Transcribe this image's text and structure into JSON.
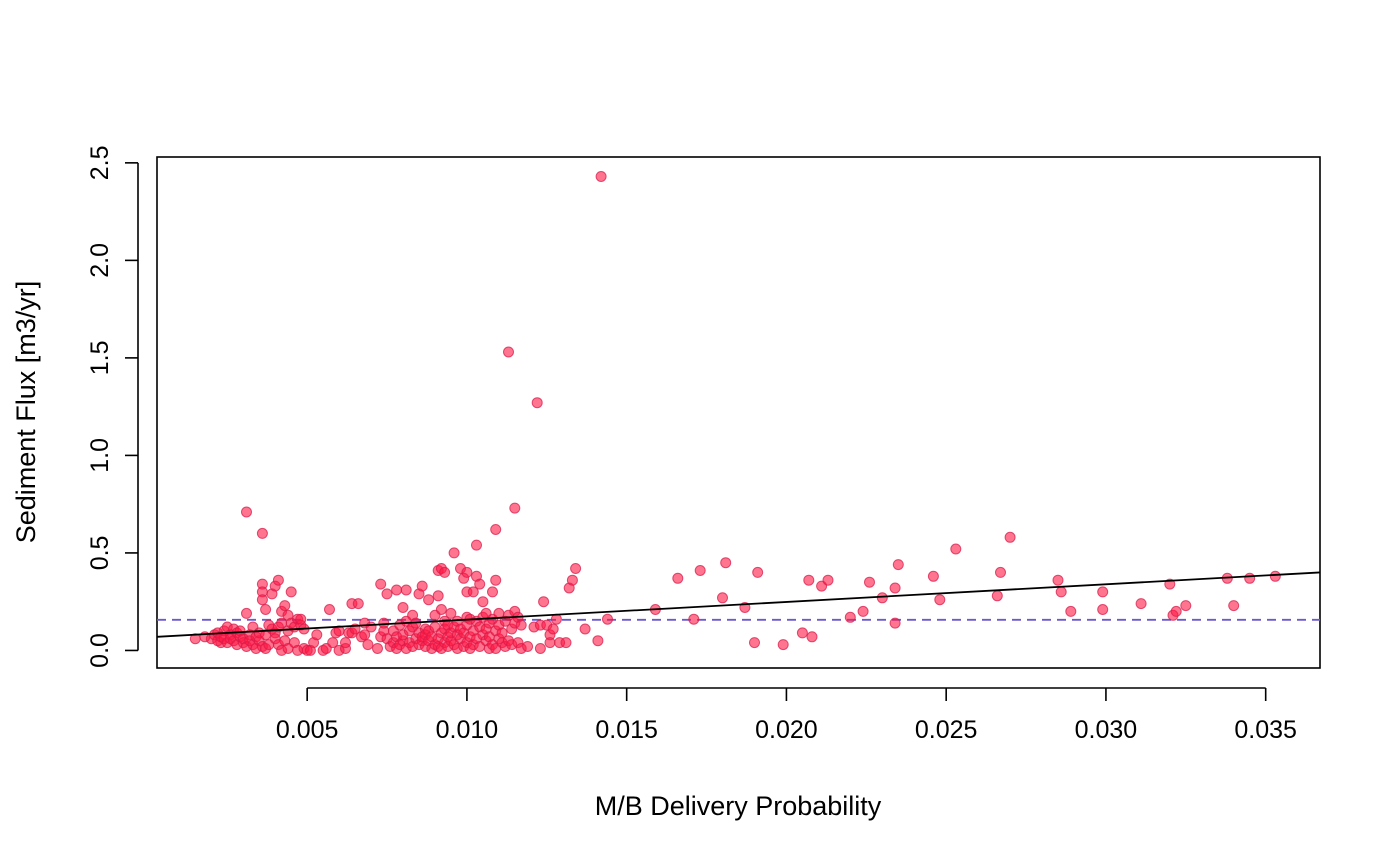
{
  "chart_data": {
    "type": "scatter",
    "title": "",
    "xlabel": "M/B Delivery Probability",
    "ylabel": "Sediment Flux [m3/yr]",
    "xlim": [
      0.0003,
      0.0367
    ],
    "ylim": [
      -0.09,
      2.53
    ],
    "x_ticks": [
      0.005,
      0.01,
      0.015,
      0.02,
      0.025,
      0.03,
      0.035
    ],
    "x_tick_labels": [
      "0.005",
      "0.010",
      "0.015",
      "0.020",
      "0.025",
      "0.030",
      "0.035"
    ],
    "y_ticks": [
      0.0,
      0.5,
      1.0,
      1.5,
      2.0,
      2.5
    ],
    "y_tick_labels": [
      "0.0",
      "0.5",
      "1.0",
      "1.5",
      "2.0",
      "2.5"
    ],
    "grid": false,
    "legend": "none",
    "colors": {
      "points": "#FF1744",
      "points_edge": "#D81B4A",
      "fit_line": "#000000",
      "mean_line": "#6A5ACD"
    },
    "fit_line": {
      "x": [
        0.0003,
        0.0367
      ],
      "y": [
        0.07,
        0.4
      ]
    },
    "mean_line": {
      "y": 0.157
    },
    "points": [
      [
        0.0015,
        0.06
      ],
      [
        0.0018,
        0.07
      ],
      [
        0.002,
        0.06
      ],
      [
        0.0021,
        0.08
      ],
      [
        0.0022,
        0.05
      ],
      [
        0.0022,
        0.09
      ],
      [
        0.0023,
        0.04
      ],
      [
        0.0023,
        0.07
      ],
      [
        0.0024,
        0.1
      ],
      [
        0.0024,
        0.06
      ],
      [
        0.0025,
        0.12
      ],
      [
        0.0025,
        0.04
      ],
      [
        0.0026,
        0.08
      ],
      [
        0.0026,
        0.06
      ],
      [
        0.0027,
        0.11
      ],
      [
        0.0027,
        0.05
      ],
      [
        0.0028,
        0.09
      ],
      [
        0.0028,
        0.03
      ],
      [
        0.0029,
        0.07
      ],
      [
        0.0029,
        0.1
      ],
      [
        0.003,
        0.04
      ],
      [
        0.003,
        0.06
      ],
      [
        0.0031,
        0.71
      ],
      [
        0.0031,
        0.19
      ],
      [
        0.0031,
        0.02
      ],
      [
        0.0032,
        0.08
      ],
      [
        0.0032,
        0.05
      ],
      [
        0.0033,
        0.12
      ],
      [
        0.0033,
        0.03
      ],
      [
        0.0034,
        0.07
      ],
      [
        0.0034,
        0.01
      ],
      [
        0.0035,
        0.05
      ],
      [
        0.0035,
        0.09
      ],
      [
        0.0036,
        0.6
      ],
      [
        0.0036,
        0.34
      ],
      [
        0.0036,
        0.3
      ],
      [
        0.0036,
        0.26
      ],
      [
        0.0036,
        0.02
      ],
      [
        0.0037,
        0.21
      ],
      [
        0.0037,
        0.08
      ],
      [
        0.0037,
        0.01
      ],
      [
        0.0038,
        0.13
      ],
      [
        0.0038,
        0.03
      ],
      [
        0.0039,
        0.29
      ],
      [
        0.0039,
        0.11
      ],
      [
        0.004,
        0.09
      ],
      [
        0.004,
        0.06
      ],
      [
        0.004,
        0.33
      ],
      [
        0.0041,
        0.36
      ],
      [
        0.0041,
        0.12
      ],
      [
        0.0041,
        0.03
      ],
      [
        0.0042,
        0.2
      ],
      [
        0.0042,
        0.14
      ],
      [
        0.0042,
        0.0
      ],
      [
        0.0043,
        0.05
      ],
      [
        0.0043,
        0.23
      ],
      [
        0.0044,
        0.18
      ],
      [
        0.0044,
        0.1
      ],
      [
        0.0044,
        0.01
      ],
      [
        0.0045,
        0.3
      ],
      [
        0.0045,
        0.14
      ],
      [
        0.0046,
        0.04
      ],
      [
        0.0046,
        0.12
      ],
      [
        0.0047,
        0.16
      ],
      [
        0.0047,
        0.0
      ],
      [
        0.0048,
        0.13
      ],
      [
        0.0048,
        0.16
      ],
      [
        0.0049,
        0.11
      ],
      [
        0.0049,
        0.01
      ],
      [
        0.005,
        0.0
      ],
      [
        0.0051,
        0.0
      ],
      [
        0.0052,
        0.04
      ],
      [
        0.0053,
        0.08
      ],
      [
        0.0055,
        0.0
      ],
      [
        0.0056,
        0.01
      ],
      [
        0.0057,
        0.21
      ],
      [
        0.0058,
        0.04
      ],
      [
        0.0059,
        0.09
      ],
      [
        0.006,
        0.1
      ],
      [
        0.006,
        0.0
      ],
      [
        0.0062,
        0.01
      ],
      [
        0.0062,
        0.04
      ],
      [
        0.0063,
        0.09
      ],
      [
        0.0064,
        0.24
      ],
      [
        0.0064,
        0.09
      ],
      [
        0.0065,
        0.11
      ],
      [
        0.0066,
        0.24
      ],
      [
        0.0067,
        0.07
      ],
      [
        0.0068,
        0.08
      ],
      [
        0.0068,
        0.14
      ],
      [
        0.0069,
        0.03
      ],
      [
        0.007,
        0.12
      ],
      [
        0.0072,
        0.01
      ],
      [
        0.0073,
        0.34
      ],
      [
        0.0073,
        0.07
      ],
      [
        0.0074,
        0.1
      ],
      [
        0.0074,
        0.14
      ],
      [
        0.0075,
        0.06
      ],
      [
        0.0075,
        0.29
      ],
      [
        0.0076,
        0.02
      ],
      [
        0.0077,
        0.04
      ],
      [
        0.0077,
        0.1
      ],
      [
        0.0078,
        0.31
      ],
      [
        0.0078,
        0.07
      ],
      [
        0.0078,
        0.01
      ],
      [
        0.0079,
        0.13
      ],
      [
        0.0079,
        0.03
      ],
      [
        0.008,
        0.22
      ],
      [
        0.008,
        0.05
      ],
      [
        0.008,
        0.08
      ],
      [
        0.0081,
        0.31
      ],
      [
        0.0081,
        0.15
      ],
      [
        0.0081,
        0.01
      ],
      [
        0.0082,
        0.1
      ],
      [
        0.0082,
        0.04
      ],
      [
        0.0083,
        0.18
      ],
      [
        0.0083,
        0.02
      ],
      [
        0.0083,
        0.12
      ],
      [
        0.0084,
        0.06
      ],
      [
        0.0084,
        0.14
      ],
      [
        0.0085,
        0.29
      ],
      [
        0.0085,
        0.03
      ],
      [
        0.0085,
        0.09
      ],
      [
        0.0086,
        0.33
      ],
      [
        0.0086,
        0.05
      ],
      [
        0.0086,
        0.07
      ],
      [
        0.0087,
        0.11
      ],
      [
        0.0087,
        0.02
      ],
      [
        0.0087,
        0.08
      ],
      [
        0.0088,
        0.26
      ],
      [
        0.0088,
        0.05
      ],
      [
        0.0088,
        0.1
      ],
      [
        0.0089,
        0.01
      ],
      [
        0.0089,
        0.07
      ],
      [
        0.009,
        0.03
      ],
      [
        0.009,
        0.12
      ],
      [
        0.009,
        0.18
      ],
      [
        0.0091,
        0.41
      ],
      [
        0.0091,
        0.28
      ],
      [
        0.0091,
        0.06
      ],
      [
        0.0091,
        0.02
      ],
      [
        0.0092,
        0.42
      ],
      [
        0.0092,
        0.21
      ],
      [
        0.0092,
        0.09
      ],
      [
        0.0092,
        0.01
      ],
      [
        0.0093,
        0.4
      ],
      [
        0.0093,
        0.15
      ],
      [
        0.0093,
        0.04
      ],
      [
        0.0093,
        0.11
      ],
      [
        0.0094,
        0.07
      ],
      [
        0.0094,
        0.02
      ],
      [
        0.0094,
        0.13
      ],
      [
        0.0095,
        0.19
      ],
      [
        0.0095,
        0.05
      ],
      [
        0.0095,
        0.09
      ],
      [
        0.0096,
        0.5
      ],
      [
        0.0096,
        0.03
      ],
      [
        0.0096,
        0.12
      ],
      [
        0.0097,
        0.08
      ],
      [
        0.0097,
        0.01
      ],
      [
        0.0097,
        0.15
      ],
      [
        0.0098,
        0.42
      ],
      [
        0.0098,
        0.06
      ],
      [
        0.0098,
        0.11
      ],
      [
        0.0099,
        0.37
      ],
      [
        0.0099,
        0.02
      ],
      [
        0.0099,
        0.09
      ],
      [
        0.01,
        0.4
      ],
      [
        0.01,
        0.3
      ],
      [
        0.01,
        0.17
      ],
      [
        0.01,
        0.04
      ],
      [
        0.01,
        0.13
      ],
      [
        0.0101,
        0.16
      ],
      [
        0.0101,
        0.07
      ],
      [
        0.0101,
        0.01
      ],
      [
        0.0102,
        0.3
      ],
      [
        0.0102,
        0.1
      ],
      [
        0.0102,
        0.03
      ],
      [
        0.0103,
        0.54
      ],
      [
        0.0103,
        0.38
      ],
      [
        0.0103,
        0.15
      ],
      [
        0.0103,
        0.06
      ],
      [
        0.0104,
        0.34
      ],
      [
        0.0104,
        0.12
      ],
      [
        0.0104,
        0.02
      ],
      [
        0.0105,
        0.25
      ],
      [
        0.0105,
        0.08
      ],
      [
        0.0105,
        0.17
      ],
      [
        0.0106,
        0.05
      ],
      [
        0.0106,
        0.11
      ],
      [
        0.0106,
        0.19
      ],
      [
        0.0107,
        0.01
      ],
      [
        0.0107,
        0.14
      ],
      [
        0.0107,
        0.07
      ],
      [
        0.0108,
        0.3
      ],
      [
        0.0108,
        0.03
      ],
      [
        0.0108,
        0.16
      ],
      [
        0.0109,
        0.62
      ],
      [
        0.0109,
        0.36
      ],
      [
        0.0109,
        0.1
      ],
      [
        0.0109,
        0.01
      ],
      [
        0.011,
        0.19
      ],
      [
        0.011,
        0.06
      ],
      [
        0.011,
        0.13
      ],
      [
        0.0111,
        0.04
      ],
      [
        0.0111,
        0.09
      ],
      [
        0.0112,
        0.15
      ],
      [
        0.0112,
        0.02
      ],
      [
        0.0113,
        1.53
      ],
      [
        0.0113,
        0.05
      ],
      [
        0.0113,
        0.18
      ],
      [
        0.0114,
        0.11
      ],
      [
        0.0114,
        0.03
      ],
      [
        0.0115,
        0.73
      ],
      [
        0.0115,
        0.2
      ],
      [
        0.0115,
        0.14
      ],
      [
        0.0116,
        0.17
      ],
      [
        0.0116,
        0.04
      ],
      [
        0.0117,
        0.13
      ],
      [
        0.0117,
        0.01
      ],
      [
        0.0119,
        0.02
      ],
      [
        0.0121,
        0.12
      ],
      [
        0.0122,
        1.27
      ],
      [
        0.0123,
        0.13
      ],
      [
        0.0123,
        0.01
      ],
      [
        0.0124,
        0.25
      ],
      [
        0.0125,
        0.13
      ],
      [
        0.0126,
        0.08
      ],
      [
        0.0126,
        0.04
      ],
      [
        0.0127,
        0.11
      ],
      [
        0.0128,
        0.16
      ],
      [
        0.0129,
        0.04
      ],
      [
        0.0131,
        0.04
      ],
      [
        0.0132,
        0.32
      ],
      [
        0.0133,
        0.36
      ],
      [
        0.0134,
        0.42
      ],
      [
        0.0137,
        0.11
      ],
      [
        0.0141,
        0.05
      ],
      [
        0.0142,
        2.43
      ],
      [
        0.0144,
        0.16
      ],
      [
        0.0159,
        0.21
      ],
      [
        0.0166,
        0.37
      ],
      [
        0.0171,
        0.16
      ],
      [
        0.0173,
        0.41
      ],
      [
        0.018,
        0.27
      ],
      [
        0.0181,
        0.45
      ],
      [
        0.0187,
        0.22
      ],
      [
        0.019,
        0.04
      ],
      [
        0.0191,
        0.4
      ],
      [
        0.0199,
        0.03
      ],
      [
        0.0205,
        0.09
      ],
      [
        0.0207,
        0.36
      ],
      [
        0.0208,
        0.07
      ],
      [
        0.0211,
        0.33
      ],
      [
        0.0213,
        0.36
      ],
      [
        0.022,
        0.17
      ],
      [
        0.0224,
        0.2
      ],
      [
        0.0226,
        0.35
      ],
      [
        0.023,
        0.27
      ],
      [
        0.0234,
        0.32
      ],
      [
        0.0234,
        0.14
      ],
      [
        0.0235,
        0.44
      ],
      [
        0.0246,
        0.38
      ],
      [
        0.0248,
        0.26
      ],
      [
        0.0253,
        0.52
      ],
      [
        0.0266,
        0.28
      ],
      [
        0.0267,
        0.4
      ],
      [
        0.027,
        0.58
      ],
      [
        0.0285,
        0.36
      ],
      [
        0.0286,
        0.3
      ],
      [
        0.0289,
        0.2
      ],
      [
        0.0299,
        0.21
      ],
      [
        0.0299,
        0.3
      ],
      [
        0.0311,
        0.24
      ],
      [
        0.032,
        0.34
      ],
      [
        0.0321,
        0.18
      ],
      [
        0.0322,
        0.2
      ],
      [
        0.0325,
        0.23
      ],
      [
        0.0338,
        0.37
      ],
      [
        0.034,
        0.23
      ],
      [
        0.0345,
        0.37
      ],
      [
        0.0353,
        0.38
      ]
    ]
  }
}
